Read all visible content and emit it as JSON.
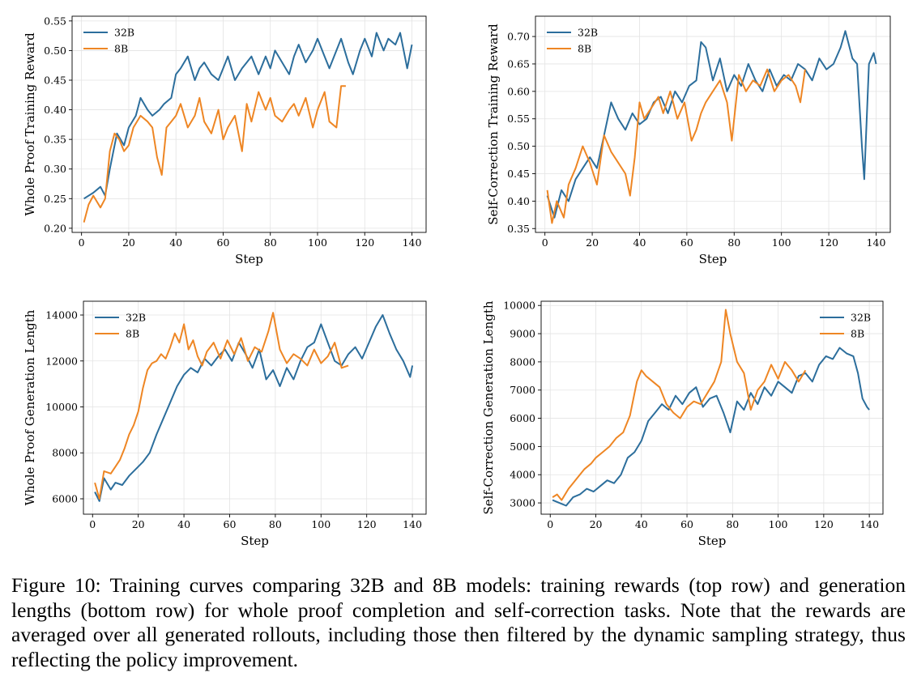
{
  "caption": "Figure 10: Training curves comparing 32B and 8B models: training rewards (top row) and generation lengths (bottom row) for whole proof completion and self-correction tasks. Note that the rewards are averaged over all generated rollouts, including those then filtered by the dynamic sampling strategy, thus reflecting the policy improvement.",
  "colors": {
    "32B": "#2c6e9c",
    "8B": "#ee8624",
    "grid": "#e3e3e3",
    "axis": "#000000"
  },
  "chart_data": [
    {
      "type": "line",
      "title": "",
      "xlabel": "Step",
      "ylabel": "Whole Proof Training Reward",
      "xlim": [
        -4,
        146
      ],
      "ylim": [
        0.193,
        0.558
      ],
      "xticks": [
        0,
        20,
        40,
        60,
        80,
        100,
        120,
        140
      ],
      "yticks": [
        0.2,
        0.25,
        0.3,
        0.35,
        0.4,
        0.45,
        0.5,
        0.55
      ],
      "ytick_labels": [
        "0.20",
        "0.25",
        "0.30",
        "0.35",
        "0.40",
        "0.45",
        "0.50",
        "0.55"
      ],
      "grid": true,
      "legend": "top-left",
      "series": [
        {
          "name": "32B",
          "x": [
            1,
            5,
            8,
            10,
            12,
            15,
            18,
            20,
            23,
            25,
            28,
            30,
            33,
            35,
            38,
            40,
            42,
            45,
            48,
            50,
            52,
            55,
            58,
            60,
            62,
            65,
            68,
            70,
            72,
            75,
            78,
            80,
            82,
            85,
            88,
            90,
            92,
            95,
            98,
            100,
            103,
            105,
            108,
            110,
            113,
            115,
            118,
            120,
            123,
            125,
            128,
            130,
            133,
            135,
            138,
            140
          ],
          "y": [
            0.25,
            0.26,
            0.27,
            0.255,
            0.3,
            0.36,
            0.34,
            0.37,
            0.39,
            0.42,
            0.4,
            0.39,
            0.4,
            0.41,
            0.42,
            0.46,
            0.47,
            0.49,
            0.45,
            0.47,
            0.48,
            0.46,
            0.45,
            0.47,
            0.49,
            0.45,
            0.47,
            0.48,
            0.49,
            0.46,
            0.49,
            0.47,
            0.5,
            0.48,
            0.46,
            0.49,
            0.51,
            0.48,
            0.5,
            0.52,
            0.49,
            0.47,
            0.5,
            0.52,
            0.48,
            0.46,
            0.5,
            0.52,
            0.49,
            0.53,
            0.5,
            0.52,
            0.51,
            0.53,
            0.47,
            0.51
          ]
        },
        {
          "name": "8B",
          "x": [
            1,
            3,
            5,
            8,
            10,
            12,
            14,
            16,
            18,
            20,
            22,
            25,
            28,
            30,
            32,
            34,
            36,
            38,
            40,
            42,
            45,
            48,
            50,
            52,
            55,
            58,
            60,
            62,
            65,
            68,
            70,
            72,
            75,
            78,
            80,
            82,
            85,
            88,
            90,
            92,
            95,
            98,
            100,
            103,
            105,
            108,
            110,
            112
          ],
          "y": [
            0.21,
            0.24,
            0.255,
            0.235,
            0.25,
            0.33,
            0.36,
            0.35,
            0.33,
            0.34,
            0.37,
            0.39,
            0.38,
            0.37,
            0.32,
            0.29,
            0.37,
            0.38,
            0.39,
            0.41,
            0.37,
            0.39,
            0.42,
            0.38,
            0.36,
            0.4,
            0.35,
            0.37,
            0.39,
            0.33,
            0.41,
            0.38,
            0.43,
            0.4,
            0.42,
            0.39,
            0.38,
            0.4,
            0.41,
            0.39,
            0.42,
            0.37,
            0.4,
            0.43,
            0.38,
            0.37,
            0.44,
            0.44
          ]
        }
      ]
    },
    {
      "type": "line",
      "title": "",
      "xlabel": "Step",
      "ylabel": "Self-Correction Training Reward",
      "xlim": [
        -4,
        146
      ],
      "ylim": [
        0.343,
        0.737
      ],
      "xticks": [
        0,
        20,
        40,
        60,
        80,
        100,
        120,
        140
      ],
      "yticks": [
        0.35,
        0.4,
        0.45,
        0.5,
        0.55,
        0.6,
        0.65,
        0.7
      ],
      "ytick_labels": [
        "0.35",
        "0.40",
        "0.45",
        "0.50",
        "0.55",
        "0.60",
        "0.65",
        "0.70"
      ],
      "grid": true,
      "legend": "top-left",
      "series": [
        {
          "name": "32B",
          "x": [
            1,
            4,
            7,
            10,
            13,
            16,
            19,
            22,
            25,
            28,
            31,
            34,
            37,
            40,
            43,
            46,
            49,
            52,
            55,
            58,
            61,
            64,
            66,
            68,
            71,
            74,
            77,
            80,
            83,
            86,
            89,
            92,
            95,
            98,
            101,
            104,
            107,
            110,
            113,
            116,
            119,
            122,
            125,
            127,
            130,
            132,
            134,
            135,
            137,
            139,
            140
          ],
          "y": [
            0.41,
            0.37,
            0.42,
            0.4,
            0.44,
            0.46,
            0.48,
            0.46,
            0.52,
            0.58,
            0.55,
            0.53,
            0.56,
            0.54,
            0.55,
            0.58,
            0.59,
            0.56,
            0.6,
            0.58,
            0.61,
            0.62,
            0.69,
            0.68,
            0.62,
            0.66,
            0.6,
            0.63,
            0.61,
            0.65,
            0.62,
            0.6,
            0.64,
            0.61,
            0.63,
            0.62,
            0.65,
            0.64,
            0.62,
            0.66,
            0.64,
            0.65,
            0.68,
            0.71,
            0.66,
            0.65,
            0.5,
            0.44,
            0.65,
            0.67,
            0.65
          ]
        },
        {
          "name": "8B",
          "x": [
            1,
            3,
            5,
            8,
            10,
            13,
            16,
            19,
            22,
            25,
            28,
            31,
            34,
            36,
            38,
            40,
            42,
            45,
            48,
            50,
            53,
            56,
            59,
            62,
            64,
            66,
            68,
            71,
            74,
            77,
            79,
            82,
            85,
            88,
            91,
            94,
            97,
            100,
            103,
            106,
            108,
            110
          ],
          "y": [
            0.42,
            0.36,
            0.4,
            0.37,
            0.43,
            0.46,
            0.5,
            0.47,
            0.43,
            0.52,
            0.49,
            0.47,
            0.45,
            0.41,
            0.48,
            0.58,
            0.55,
            0.57,
            0.59,
            0.56,
            0.6,
            0.55,
            0.58,
            0.51,
            0.53,
            0.56,
            0.58,
            0.6,
            0.62,
            0.58,
            0.51,
            0.63,
            0.6,
            0.62,
            0.61,
            0.64,
            0.6,
            0.62,
            0.63,
            0.61,
            0.58,
            0.64
          ]
        }
      ]
    },
    {
      "type": "line",
      "title": "",
      "xlabel": "Step",
      "ylabel": "Whole Proof Generation Length",
      "xlim": [
        -4,
        146
      ],
      "ylim": [
        5330,
        14600
      ],
      "xticks": [
        0,
        20,
        40,
        60,
        80,
        100,
        120,
        140
      ],
      "yticks": [
        6000,
        8000,
        10000,
        12000,
        14000
      ],
      "ytick_labels": [
        "6000",
        "8000",
        "10000",
        "12000",
        "14000"
      ],
      "grid": true,
      "legend": "top-left",
      "series": [
        {
          "name": "32B",
          "x": [
            1,
            3,
            5,
            8,
            10,
            13,
            16,
            19,
            22,
            25,
            28,
            31,
            34,
            37,
            40,
            43,
            46,
            49,
            52,
            55,
            58,
            61,
            64,
            67,
            70,
            73,
            76,
            79,
            82,
            85,
            88,
            91,
            94,
            97,
            100,
            103,
            106,
            109,
            112,
            115,
            118,
            121,
            124,
            127,
            130,
            133,
            136,
            139,
            140
          ],
          "y": [
            6300,
            5900,
            6900,
            6400,
            6700,
            6600,
            7000,
            7300,
            7600,
            8000,
            8800,
            9500,
            10200,
            10900,
            11400,
            11700,
            11500,
            12100,
            11800,
            12200,
            12500,
            12000,
            12800,
            12300,
            11700,
            12500,
            11200,
            11600,
            10900,
            11700,
            11200,
            12000,
            12600,
            12800,
            13600,
            12800,
            12000,
            11800,
            12300,
            12600,
            12100,
            12800,
            13500,
            14000,
            13200,
            12500,
            12000,
            11300,
            11800
          ]
        },
        {
          "name": "8B",
          "x": [
            1,
            3,
            5,
            8,
            10,
            12,
            14,
            16,
            18,
            20,
            22,
            24,
            26,
            28,
            30,
            32,
            34,
            36,
            38,
            40,
            42,
            44,
            46,
            48,
            50,
            53,
            56,
            59,
            62,
            65,
            68,
            71,
            74,
            77,
            79,
            82,
            85,
            88,
            91,
            94,
            97,
            100,
            103,
            106,
            109,
            112
          ],
          "y": [
            6700,
            6000,
            7200,
            7100,
            7400,
            7700,
            8200,
            8800,
            9200,
            9800,
            10800,
            11600,
            11900,
            12000,
            12300,
            12100,
            12600,
            13200,
            12800,
            13600,
            12500,
            12900,
            12200,
            11800,
            12400,
            12800,
            12100,
            12900,
            12300,
            13000,
            12000,
            12600,
            12400,
            13300,
            14100,
            12500,
            11900,
            12300,
            12100,
            11800,
            12500,
            11900,
            12200,
            12800,
            11700,
            11800
          ]
        }
      ]
    },
    {
      "type": "line",
      "title": "",
      "xlabel": "Step",
      "ylabel": "Self-Correction Generation Length",
      "xlim": [
        -4,
        146
      ],
      "ylim": [
        2600,
        10150
      ],
      "xticks": [
        0,
        20,
        40,
        60,
        80,
        100,
        120,
        140
      ],
      "yticks": [
        3000,
        4000,
        5000,
        6000,
        7000,
        8000,
        9000,
        10000
      ],
      "ytick_labels": [
        "3000",
        "4000",
        "5000",
        "6000",
        "7000",
        "8000",
        "9000",
        "10000"
      ],
      "grid": true,
      "legend": "top-right",
      "series": [
        {
          "name": "32B",
          "x": [
            1,
            4,
            7,
            10,
            13,
            16,
            19,
            22,
            25,
            28,
            31,
            34,
            37,
            40,
            43,
            46,
            49,
            52,
            55,
            58,
            61,
            64,
            67,
            70,
            73,
            76,
            79,
            82,
            85,
            88,
            91,
            94,
            97,
            100,
            103,
            106,
            109,
            112,
            115,
            118,
            121,
            124,
            127,
            130,
            133,
            135,
            137,
            139,
            140
          ],
          "y": [
            3100,
            3000,
            2900,
            3200,
            3300,
            3500,
            3400,
            3600,
            3800,
            3700,
            4000,
            4600,
            4800,
            5200,
            5900,
            6200,
            6500,
            6300,
            6800,
            6500,
            6900,
            7100,
            6400,
            6700,
            6800,
            6200,
            5500,
            6600,
            6300,
            6900,
            6500,
            7100,
            6800,
            7300,
            7100,
            6900,
            7500,
            7600,
            7300,
            7900,
            8200,
            8100,
            8500,
            8300,
            8200,
            7600,
            6700,
            6400,
            6300
          ]
        },
        {
          "name": "8B",
          "x": [
            1,
            3,
            5,
            8,
            10,
            12,
            15,
            18,
            20,
            23,
            26,
            29,
            32,
            35,
            38,
            40,
            42,
            45,
            48,
            51,
            54,
            57,
            60,
            63,
            66,
            69,
            72,
            75,
            77,
            79,
            82,
            85,
            88,
            91,
            94,
            97,
            100,
            103,
            106,
            109,
            112
          ],
          "y": [
            3200,
            3300,
            3100,
            3500,
            3700,
            3900,
            4200,
            4400,
            4600,
            4800,
            5000,
            5300,
            5500,
            6100,
            7300,
            7700,
            7500,
            7300,
            7100,
            6500,
            6200,
            6000,
            6400,
            6600,
            6500,
            6900,
            7300,
            8000,
            9850,
            9000,
            8000,
            7600,
            6300,
            7000,
            7300,
            7900,
            7400,
            8000,
            7700,
            7300,
            7700
          ]
        }
      ]
    }
  ]
}
